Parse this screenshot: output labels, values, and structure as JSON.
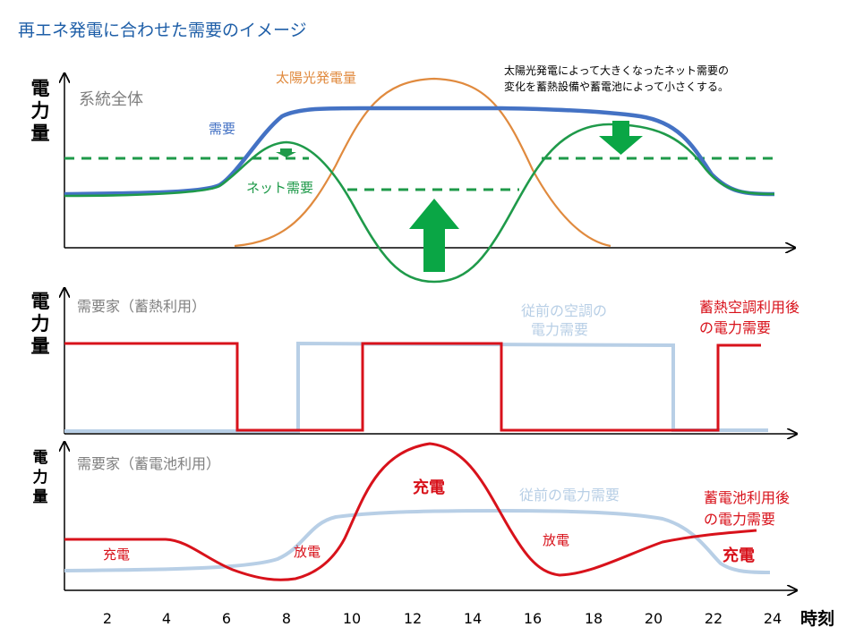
{
  "title": "再エネ発電に合わせた需要のイメージ",
  "colors": {
    "title": "#1f5fa8",
    "blue": "#4472c4",
    "green": "#1f9a4a",
    "orange": "#e08a3e",
    "red": "#d8121b",
    "light_blue": "#b8cfe6",
    "gray": "#7f7f7f",
    "axis": "#000000"
  },
  "axis": {
    "ylabel_chars": [
      "電",
      "力",
      "量"
    ],
    "xticks": [
      "2",
      "4",
      "6",
      "8",
      "10",
      "12",
      "14",
      "16",
      "18",
      "20",
      "22",
      "24"
    ],
    "xlabel": "時刻"
  },
  "panel1": {
    "label": "系統全体",
    "demand_label": "需要",
    "solar_label": "太陽光発電量",
    "net_label": "ネット需要",
    "note_line1": "太陽光発電によって大きくなったネット需要の",
    "note_line2": "変化を蓄熱設備や蓄電池によって小さくする。"
  },
  "panel2": {
    "label": "需要家（蓄熱利用）",
    "prev_line1": "従前の空調の",
    "prev_line2": "電力需要",
    "after_line1": "蓄熱空調利用後",
    "after_line2": "の電力需要"
  },
  "panel3": {
    "label": "需要家（蓄電池利用）",
    "prev_label": "従前の電力需要",
    "after_line1": "蓄電池利用後",
    "after_line2": "の電力需要",
    "charge_left": "充電",
    "discharge_left": "放電",
    "charge_center": "充電",
    "discharge_right": "放電",
    "charge_right": "充電"
  }
}
